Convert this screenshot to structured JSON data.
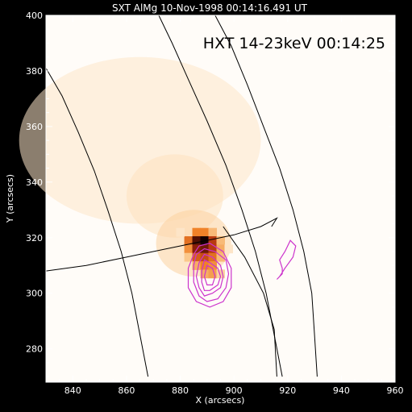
{
  "chart_data": {
    "type": "heatmap",
    "title": "SXT AlMg 10-Nov-1998 00:14:16.491 UT",
    "annotation": "HXT 14-23keV 00:14:25",
    "xlabel": "X (arcsecs)",
    "ylabel": "Y (arcsecs)",
    "xlim": [
      830,
      960
    ],
    "ylim": [
      268,
      400
    ],
    "xticks": [
      840,
      860,
      880,
      900,
      920,
      940,
      960
    ],
    "yticks": [
      280,
      300,
      320,
      340,
      360,
      380,
      400
    ],
    "grid": "heliographic lines",
    "colors": {
      "background": "#000000",
      "plot_bg": "#fffcf8",
      "contours": "#cc33cc",
      "grid_lines": "#000000"
    },
    "hot_pixels": [
      {
        "x": 886,
        "y": 322,
        "v": 0.5
      },
      {
        "x": 889,
        "y": 322,
        "v": 0.5
      },
      {
        "x": 892,
        "y": 322,
        "v": 0.3
      },
      {
        "x": 883,
        "y": 319,
        "v": 0.55
      },
      {
        "x": 886,
        "y": 319,
        "v": 0.9
      },
      {
        "x": 889,
        "y": 319,
        "v": 1.0
      },
      {
        "x": 892,
        "y": 319,
        "v": 0.7
      },
      {
        "x": 895,
        "y": 319,
        "v": 0.3
      },
      {
        "x": 883,
        "y": 316,
        "v": 0.45
      },
      {
        "x": 886,
        "y": 316,
        "v": 0.8
      },
      {
        "x": 889,
        "y": 316,
        "v": 0.85
      },
      {
        "x": 892,
        "y": 316,
        "v": 0.7
      },
      {
        "x": 895,
        "y": 316,
        "v": 0.35
      },
      {
        "x": 883,
        "y": 313,
        "v": 0.25
      },
      {
        "x": 886,
        "y": 313,
        "v": 0.6
      },
      {
        "x": 889,
        "y": 313,
        "v": 0.65
      },
      {
        "x": 892,
        "y": 313,
        "v": 0.55
      },
      {
        "x": 895,
        "y": 313,
        "v": 0.3
      },
      {
        "x": 886,
        "y": 310,
        "v": 0.35
      },
      {
        "x": 889,
        "y": 310,
        "v": 0.5
      },
      {
        "x": 892,
        "y": 310,
        "v": 0.45
      },
      {
        "x": 889,
        "y": 307,
        "v": 0.35
      },
      {
        "x": 892,
        "y": 307,
        "v": 0.4
      },
      {
        "x": 895,
        "y": 307,
        "v": 0.2
      },
      {
        "x": 880,
        "y": 322,
        "v": 0.1
      },
      {
        "x": 898,
        "y": 316,
        "v": 0.1
      }
    ],
    "diffuse_regions": [
      {
        "x": 865,
        "y": 355,
        "rx": 45,
        "ry": 30,
        "v": 0.1
      },
      {
        "x": 878,
        "y": 335,
        "rx": 18,
        "ry": 15,
        "v": 0.12
      },
      {
        "x": 885,
        "y": 318,
        "rx": 14,
        "ry": 12,
        "v": 0.2
      }
    ],
    "contours": [
      [
        [
          889,
          316
        ],
        [
          893,
          315
        ],
        [
          897,
          312
        ],
        [
          898,
          307
        ],
        [
          897,
          302
        ],
        [
          894,
          298
        ],
        [
          890,
          297
        ],
        [
          887,
          299
        ],
        [
          885,
          304
        ],
        [
          885,
          310
        ],
        [
          886,
          314
        ],
        [
          889,
          316
        ]
      ],
      [
        [
          889,
          314
        ],
        [
          892,
          313
        ],
        [
          895,
          310
        ],
        [
          896,
          306
        ],
        [
          895,
          302
        ],
        [
          892,
          300
        ],
        [
          889,
          299
        ],
        [
          887,
          302
        ],
        [
          886,
          306
        ],
        [
          887,
          311
        ],
        [
          889,
          314
        ]
      ],
      [
        [
          889,
          312
        ],
        [
          891,
          311
        ],
        [
          894,
          309
        ],
        [
          895,
          306
        ],
        [
          894,
          303
        ],
        [
          891,
          301
        ],
        [
          889,
          301
        ],
        [
          888,
          304
        ],
        [
          888,
          308
        ],
        [
          889,
          312
        ]
      ],
      [
        [
          890,
          310
        ],
        [
          892,
          309
        ],
        [
          893,
          306
        ],
        [
          892,
          303
        ],
        [
          890,
          303
        ],
        [
          889,
          306
        ],
        [
          890,
          310
        ]
      ],
      [
        [
          887,
          317
        ],
        [
          891,
          318
        ],
        [
          896,
          315
        ],
        [
          899,
          309
        ],
        [
          899,
          302
        ],
        [
          896,
          297
        ],
        [
          891,
          295
        ],
        [
          886,
          297
        ],
        [
          883,
          302
        ],
        [
          883,
          309
        ],
        [
          885,
          314
        ],
        [
          887,
          317
        ]
      ],
      [
        [
          921,
          319
        ],
        [
          923,
          317
        ],
        [
          922,
          313
        ],
        [
          919,
          309
        ],
        [
          917,
          306
        ],
        [
          916,
          305
        ],
        [
          918,
          307
        ],
        [
          918,
          309
        ],
        [
          917,
          312
        ],
        [
          919,
          315
        ],
        [
          921,
          319
        ]
      ]
    ],
    "grid_lines": [
      [
        [
          830,
          381
        ],
        [
          836,
          371
        ],
        [
          842,
          358
        ],
        [
          848,
          344
        ],
        [
          853,
          330
        ],
        [
          858,
          315
        ],
        [
          862,
          300
        ],
        [
          865,
          285
        ],
        [
          868,
          270
        ]
      ],
      [
        [
          872,
          400
        ],
        [
          877,
          390
        ],
        [
          883,
          377
        ],
        [
          890,
          362
        ],
        [
          897,
          346
        ],
        [
          903,
          330
        ],
        [
          908,
          315
        ],
        [
          912,
          300
        ],
        [
          915,
          285
        ],
        [
          918,
          270
        ]
      ],
      [
        [
          893,
          400
        ],
        [
          899,
          389
        ],
        [
          905,
          375
        ],
        [
          911,
          360
        ],
        [
          917,
          345
        ],
        [
          922,
          330
        ],
        [
          926,
          315
        ],
        [
          929,
          300
        ],
        [
          930,
          285
        ],
        [
          931,
          270
        ]
      ],
      [
        [
          830,
          308
        ],
        [
          845,
          310
        ],
        [
          860,
          313
        ],
        [
          875,
          316
        ],
        [
          890,
          319
        ],
        [
          900,
          321
        ],
        [
          910,
          324
        ],
        [
          916,
          327
        ],
        [
          914,
          324
        ]
      ],
      [
        [
          896,
          324
        ],
        [
          904,
          313
        ],
        [
          911,
          300
        ],
        [
          915,
          287
        ],
        [
          916,
          270
        ]
      ]
    ]
  }
}
